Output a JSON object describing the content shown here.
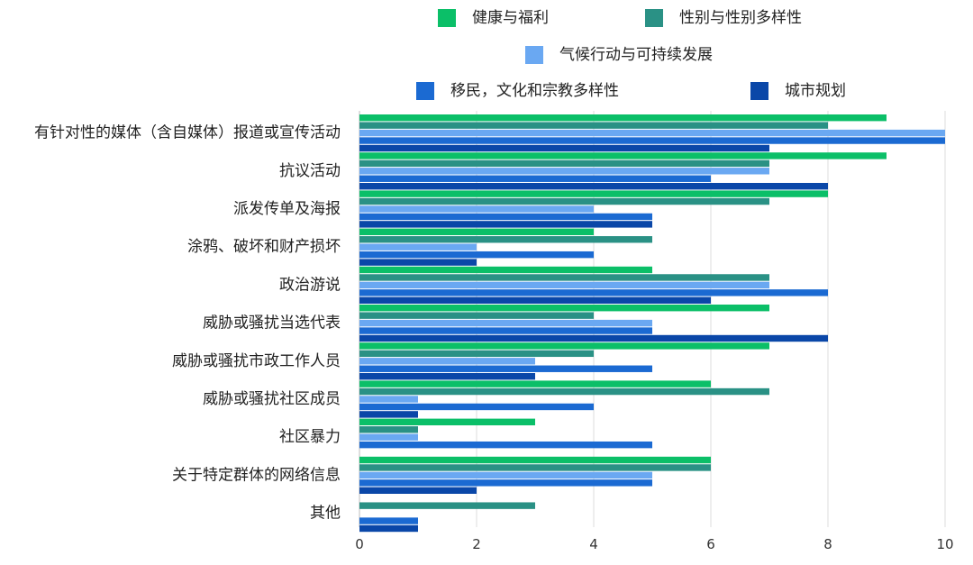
{
  "chart_data": {
    "type": "bar",
    "orientation": "horizontal",
    "title": "",
    "xlabel": "",
    "ylabel": "",
    "xlim": [
      0,
      10
    ],
    "x_ticks": [
      0,
      2,
      4,
      6,
      8,
      10
    ],
    "grid": "vertical",
    "legend_position": "top",
    "categories": [
      "有针对性的媒体（含自媒体）报道或宣传活动",
      "抗议活动",
      "派发传单及海报",
      "涂鸦、破坏和财产损坏",
      "政治游说",
      "威胁或骚扰当选代表",
      "威胁或骚扰市政工作人员",
      "威胁或骚扰社区成员",
      "社区暴力",
      "关于特定群体的网络信息",
      "其他"
    ],
    "series": [
      {
        "name": "健康与福利",
        "color": "#0BBF68",
        "values": [
          9,
          9,
          8,
          4,
          5,
          7,
          7,
          6,
          3,
          6,
          0
        ]
      },
      {
        "name": "性别与性别多样性",
        "color": "#2A9185",
        "values": [
          8,
          7,
          7,
          5,
          7,
          4,
          4,
          7,
          1,
          6,
          3
        ]
      },
      {
        "name": "气候行动与可持续发展",
        "color": "#6AA8F2",
        "values": [
          10,
          7,
          4,
          2,
          7,
          5,
          3,
          1,
          1,
          5,
          0
        ]
      },
      {
        "name": "移民，文化和宗教多样性",
        "color": "#1B6AD2",
        "values": [
          10,
          6,
          5,
          4,
          8,
          5,
          5,
          4,
          5,
          5,
          1
        ]
      },
      {
        "name": "城市规划",
        "color": "#0A47A8",
        "values": [
          7,
          8,
          5,
          2,
          6,
          8,
          3,
          1,
          0,
          2,
          1
        ]
      }
    ]
  }
}
